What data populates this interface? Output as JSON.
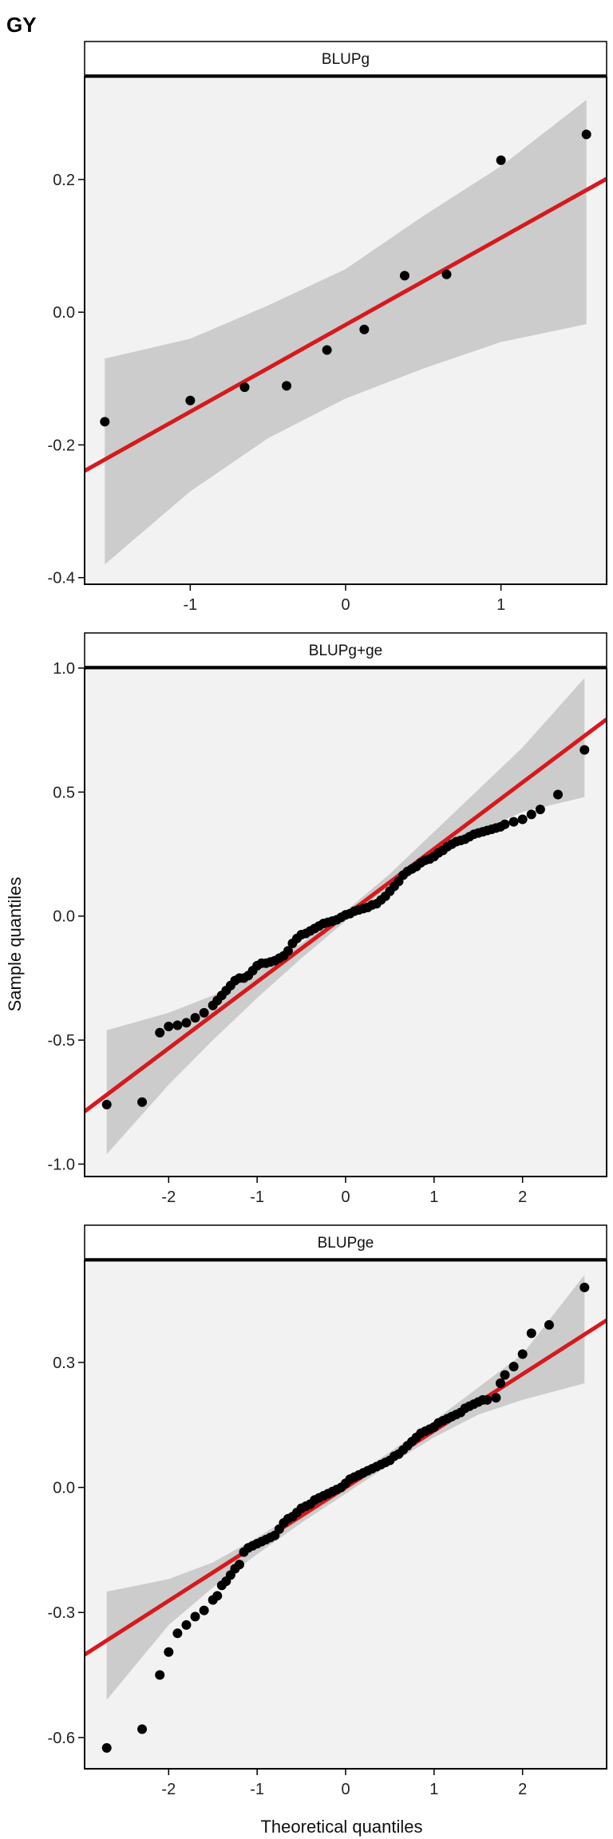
{
  "figure_title": "GY",
  "ylabel": "Sample quantiles",
  "xlabel": "Theoretical quantiles",
  "colors": {
    "panel_bg": "#f2f2f2",
    "band": "#cccccc",
    "line": "#d7191c",
    "point": "#000000"
  },
  "chart_data": [
    {
      "type": "scatter",
      "subtype": "qq-plot",
      "title": "BLUPg",
      "xlim": [
        -1.68,
        1.68
      ],
      "ylim": [
        -0.41,
        0.355
      ],
      "xticks": [
        -1,
        0,
        1
      ],
      "xtick_labels": [
        "-1",
        "0",
        "1"
      ],
      "yticks": [
        -0.4,
        -0.2,
        0.0,
        0.2
      ],
      "ytick_labels": [
        "-0.4",
        "-0.2",
        "0.0",
        "0.2"
      ],
      "line": {
        "slope": 0.131,
        "intercept": -0.019
      },
      "band": {
        "x": [
          -1.55,
          -1.0,
          -0.5,
          0.0,
          0.5,
          1.0,
          1.55
        ],
        "lower": [
          -0.38,
          -0.27,
          -0.19,
          -0.13,
          -0.085,
          -0.045,
          -0.018
        ],
        "upper": [
          -0.07,
          -0.04,
          0.01,
          0.065,
          0.145,
          0.22,
          0.32
        ]
      },
      "points": {
        "x": [
          -1.55,
          -1.0,
          -0.65,
          -0.38,
          -0.12,
          0.12,
          0.38,
          0.65,
          1.0,
          1.55
        ],
        "y": [
          -0.165,
          -0.133,
          -0.113,
          -0.111,
          -0.057,
          -0.026,
          0.055,
          0.057,
          0.229,
          0.268
        ]
      },
      "legend": "none",
      "grid": false
    },
    {
      "type": "scatter",
      "subtype": "qq-plot",
      "title": "BLUPg+ge",
      "xlim": [
        -2.95,
        2.95
      ],
      "ylim": [
        -1.05,
        1.0
      ],
      "xticks": [
        -2,
        -1,
        0,
        1,
        2
      ],
      "xtick_labels": [
        "-2",
        "-1",
        "0",
        "1",
        "2"
      ],
      "yticks": [
        -1.0,
        -0.5,
        0.0,
        0.5,
        1.0
      ],
      "ytick_labels": [
        "-1.0",
        "-0.5",
        "0.0",
        "0.5",
        "1.0"
      ],
      "line": {
        "slope": 0.268,
        "intercept": 0.003
      },
      "band": {
        "x": [
          -2.7,
          -2.0,
          -1.5,
          -1.0,
          -0.5,
          0.0,
          0.5,
          1.0,
          1.5,
          2.0,
          2.7
        ],
        "lower": [
          -0.96,
          -0.68,
          -0.5,
          -0.33,
          -0.17,
          -0.02,
          0.12,
          0.24,
          0.34,
          0.42,
          0.48
        ],
        "upper": [
          -0.46,
          -0.39,
          -0.32,
          -0.22,
          -0.11,
          0.02,
          0.17,
          0.34,
          0.51,
          0.68,
          0.96
        ]
      },
      "points": {
        "x": [
          -2.7,
          -2.3,
          -2.1,
          -2.0,
          -1.9,
          -1.8,
          -1.7,
          -1.6,
          -1.5,
          -1.45,
          -1.4,
          -1.35,
          -1.3,
          -1.25,
          -1.2,
          -1.15,
          -1.1,
          -1.05,
          -1.0,
          -0.95,
          -0.9,
          -0.85,
          -0.8,
          -0.75,
          -0.7,
          -0.65,
          -0.6,
          -0.55,
          -0.5,
          -0.45,
          -0.4,
          -0.35,
          -0.3,
          -0.25,
          -0.2,
          -0.15,
          -0.1,
          -0.05,
          0.0,
          0.05,
          0.1,
          0.15,
          0.2,
          0.25,
          0.3,
          0.35,
          0.4,
          0.45,
          0.5,
          0.55,
          0.6,
          0.65,
          0.7,
          0.75,
          0.8,
          0.85,
          0.9,
          0.95,
          1.0,
          1.05,
          1.1,
          1.15,
          1.2,
          1.25,
          1.3,
          1.35,
          1.4,
          1.45,
          1.5,
          1.55,
          1.6,
          1.65,
          1.7,
          1.75,
          1.8,
          1.9,
          2.0,
          2.1,
          2.2,
          2.4,
          2.7
        ],
        "y": [
          -0.76,
          -0.75,
          -0.47,
          -0.445,
          -0.44,
          -0.43,
          -0.41,
          -0.39,
          -0.36,
          -0.34,
          -0.32,
          -0.3,
          -0.28,
          -0.26,
          -0.25,
          -0.25,
          -0.24,
          -0.22,
          -0.2,
          -0.19,
          -0.19,
          -0.185,
          -0.18,
          -0.17,
          -0.16,
          -0.14,
          -0.11,
          -0.09,
          -0.075,
          -0.07,
          -0.06,
          -0.05,
          -0.04,
          -0.03,
          -0.025,
          -0.02,
          -0.015,
          -0.005,
          0.005,
          0.01,
          0.02,
          0.025,
          0.03,
          0.035,
          0.045,
          0.05,
          0.065,
          0.08,
          0.1,
          0.12,
          0.14,
          0.165,
          0.18,
          0.19,
          0.2,
          0.215,
          0.225,
          0.23,
          0.24,
          0.255,
          0.265,
          0.28,
          0.29,
          0.3,
          0.305,
          0.31,
          0.32,
          0.33,
          0.335,
          0.34,
          0.345,
          0.35,
          0.355,
          0.36,
          0.37,
          0.38,
          0.39,
          0.41,
          0.43,
          0.49,
          0.67
        ]
      },
      "legend": "none",
      "grid": false
    },
    {
      "type": "scatter",
      "subtype": "qq-plot",
      "title": "BLUPge",
      "xlim": [
        -2.95,
        2.95
      ],
      "ylim": [
        -0.675,
        0.545
      ],
      "xticks": [
        -2,
        -1,
        0,
        1,
        2
      ],
      "xtick_labels": [
        "-2",
        "-1",
        "0",
        "1",
        "2"
      ],
      "yticks": [
        -0.6,
        -0.3,
        0.0,
        0.3
      ],
      "ytick_labels": [
        "-0.6",
        "-0.3",
        "0.0",
        "0.3"
      ],
      "line": {
        "slope": 0.136,
        "intercept": 0.0
      },
      "band": {
        "x": [
          -2.7,
          -2.0,
          -1.5,
          -1.0,
          -0.5,
          0.0,
          0.5,
          1.0,
          1.5,
          2.0,
          2.7
        ],
        "lower": [
          -0.51,
          -0.33,
          -0.24,
          -0.16,
          -0.085,
          -0.015,
          0.055,
          0.12,
          0.175,
          0.21,
          0.25
        ],
        "upper": [
          -0.25,
          -0.22,
          -0.18,
          -0.12,
          -0.055,
          0.015,
          0.085,
          0.16,
          0.24,
          0.32,
          0.51
        ]
      },
      "points": {
        "x": [
          -2.7,
          -2.3,
          -2.1,
          -2.0,
          -1.9,
          -1.8,
          -1.7,
          -1.6,
          -1.5,
          -1.45,
          -1.4,
          -1.35,
          -1.3,
          -1.25,
          -1.2,
          -1.15,
          -1.1,
          -1.05,
          -1.0,
          -0.95,
          -0.9,
          -0.85,
          -0.8,
          -0.75,
          -0.7,
          -0.65,
          -0.6,
          -0.55,
          -0.5,
          -0.45,
          -0.4,
          -0.35,
          -0.3,
          -0.25,
          -0.2,
          -0.15,
          -0.1,
          -0.05,
          0.0,
          0.05,
          0.1,
          0.15,
          0.2,
          0.25,
          0.3,
          0.35,
          0.4,
          0.45,
          0.5,
          0.55,
          0.6,
          0.65,
          0.7,
          0.75,
          0.8,
          0.85,
          0.9,
          0.95,
          1.0,
          1.05,
          1.1,
          1.15,
          1.2,
          1.25,
          1.3,
          1.35,
          1.4,
          1.45,
          1.5,
          1.55,
          1.6,
          1.7,
          1.75,
          1.8,
          1.9,
          2.0,
          2.1,
          2.3,
          2.7
        ],
        "y": [
          -0.625,
          -0.58,
          -0.45,
          -0.395,
          -0.35,
          -0.33,
          -0.31,
          -0.295,
          -0.27,
          -0.26,
          -0.235,
          -0.225,
          -0.21,
          -0.195,
          -0.185,
          -0.155,
          -0.145,
          -0.14,
          -0.135,
          -0.13,
          -0.125,
          -0.12,
          -0.115,
          -0.1,
          -0.085,
          -0.075,
          -0.07,
          -0.06,
          -0.05,
          -0.045,
          -0.04,
          -0.03,
          -0.025,
          -0.02,
          -0.015,
          -0.01,
          -0.005,
          0.0,
          0.01,
          0.02,
          0.025,
          0.03,
          0.035,
          0.04,
          0.045,
          0.05,
          0.055,
          0.06,
          0.065,
          0.075,
          0.08,
          0.09,
          0.1,
          0.11,
          0.12,
          0.13,
          0.135,
          0.14,
          0.145,
          0.155,
          0.16,
          0.165,
          0.17,
          0.175,
          0.18,
          0.19,
          0.195,
          0.2,
          0.205,
          0.21,
          0.21,
          0.215,
          0.25,
          0.27,
          0.29,
          0.32,
          0.37,
          0.39,
          0.48
        ]
      },
      "legend": "none",
      "grid": false
    }
  ]
}
